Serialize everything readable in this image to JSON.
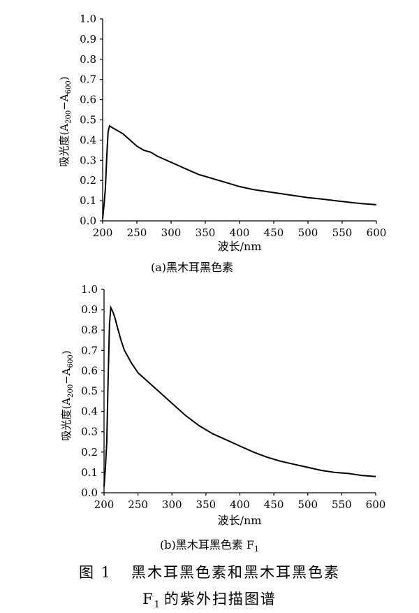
{
  "figure_caption": {
    "label": "图 1",
    "line1": "黑木耳黑色素和黑木耳黑色素",
    "line2_main": "F",
    "line2_sub": "1",
    "line2_rest": "的紫外扫描图谱"
  },
  "chart_data": [
    {
      "type": "line",
      "panel_label": "(a)黑木耳黑色素",
      "xlabel": "波长/nm",
      "ylabel_main": "吸光度(A",
      "ylabel_sub1": "200",
      "ylabel_mid": "−A",
      "ylabel_sub2": "600",
      "ylabel_end": ")",
      "xlim": [
        200,
        600
      ],
      "ylim": [
        0,
        1.0
      ],
      "xticks": [
        "200",
        "250",
        "300",
        "350",
        "400",
        "450",
        "500",
        "550",
        "600"
      ],
      "yticks": [
        "0.0",
        "0.1",
        "0.2",
        "0.3",
        "0.4",
        "0.5",
        "0.6",
        "0.7",
        "0.8",
        "0.9",
        "1.0"
      ],
      "grid": false,
      "series": [
        {
          "x": [
            200,
            202,
            204,
            206,
            208,
            210,
            215,
            220,
            230,
            240,
            250,
            260,
            270,
            280,
            300,
            320,
            340,
            360,
            380,
            400,
            420,
            440,
            460,
            480,
            500,
            520,
            540,
            560,
            580,
            600
          ],
          "values": [
            0.01,
            0.08,
            0.16,
            0.32,
            0.44,
            0.47,
            0.46,
            0.45,
            0.43,
            0.4,
            0.37,
            0.35,
            0.34,
            0.32,
            0.29,
            0.26,
            0.23,
            0.21,
            0.19,
            0.17,
            0.155,
            0.145,
            0.135,
            0.125,
            0.115,
            0.108,
            0.1,
            0.092,
            0.085,
            0.08
          ]
        }
      ]
    },
    {
      "type": "line",
      "panel_label_main": "(b)黑木耳黑色素 F",
      "panel_label_sub": "1",
      "xlabel": "波长/nm",
      "ylabel_main": "吸光度(A",
      "ylabel_sub1": "200",
      "ylabel_mid": "−A",
      "ylabel_sub2": "600",
      "ylabel_end": ")",
      "xlim": [
        200,
        600
      ],
      "ylim": [
        0,
        1.0
      ],
      "xticks": [
        "200",
        "250",
        "300",
        "350",
        "400",
        "450",
        "500",
        "550",
        "600"
      ],
      "yticks": [
        "0.0",
        "0.1",
        "0.2",
        "0.3",
        "0.4",
        "0.5",
        "0.6",
        "0.7",
        "0.8",
        "0.9",
        "1.0"
      ],
      "grid": false,
      "series": [
        {
          "x": [
            200,
            202,
            204,
            206,
            208,
            210,
            213,
            216,
            220,
            225,
            230,
            240,
            250,
            260,
            280,
            300,
            320,
            340,
            360,
            380,
            400,
            420,
            440,
            460,
            480,
            500,
            520,
            540,
            560,
            580,
            600
          ],
          "values": [
            0.03,
            0.12,
            0.25,
            0.55,
            0.83,
            0.91,
            0.89,
            0.86,
            0.81,
            0.75,
            0.7,
            0.64,
            0.59,
            0.56,
            0.5,
            0.44,
            0.38,
            0.33,
            0.29,
            0.26,
            0.23,
            0.2,
            0.175,
            0.155,
            0.14,
            0.125,
            0.11,
            0.1,
            0.095,
            0.085,
            0.08
          ]
        }
      ]
    }
  ]
}
